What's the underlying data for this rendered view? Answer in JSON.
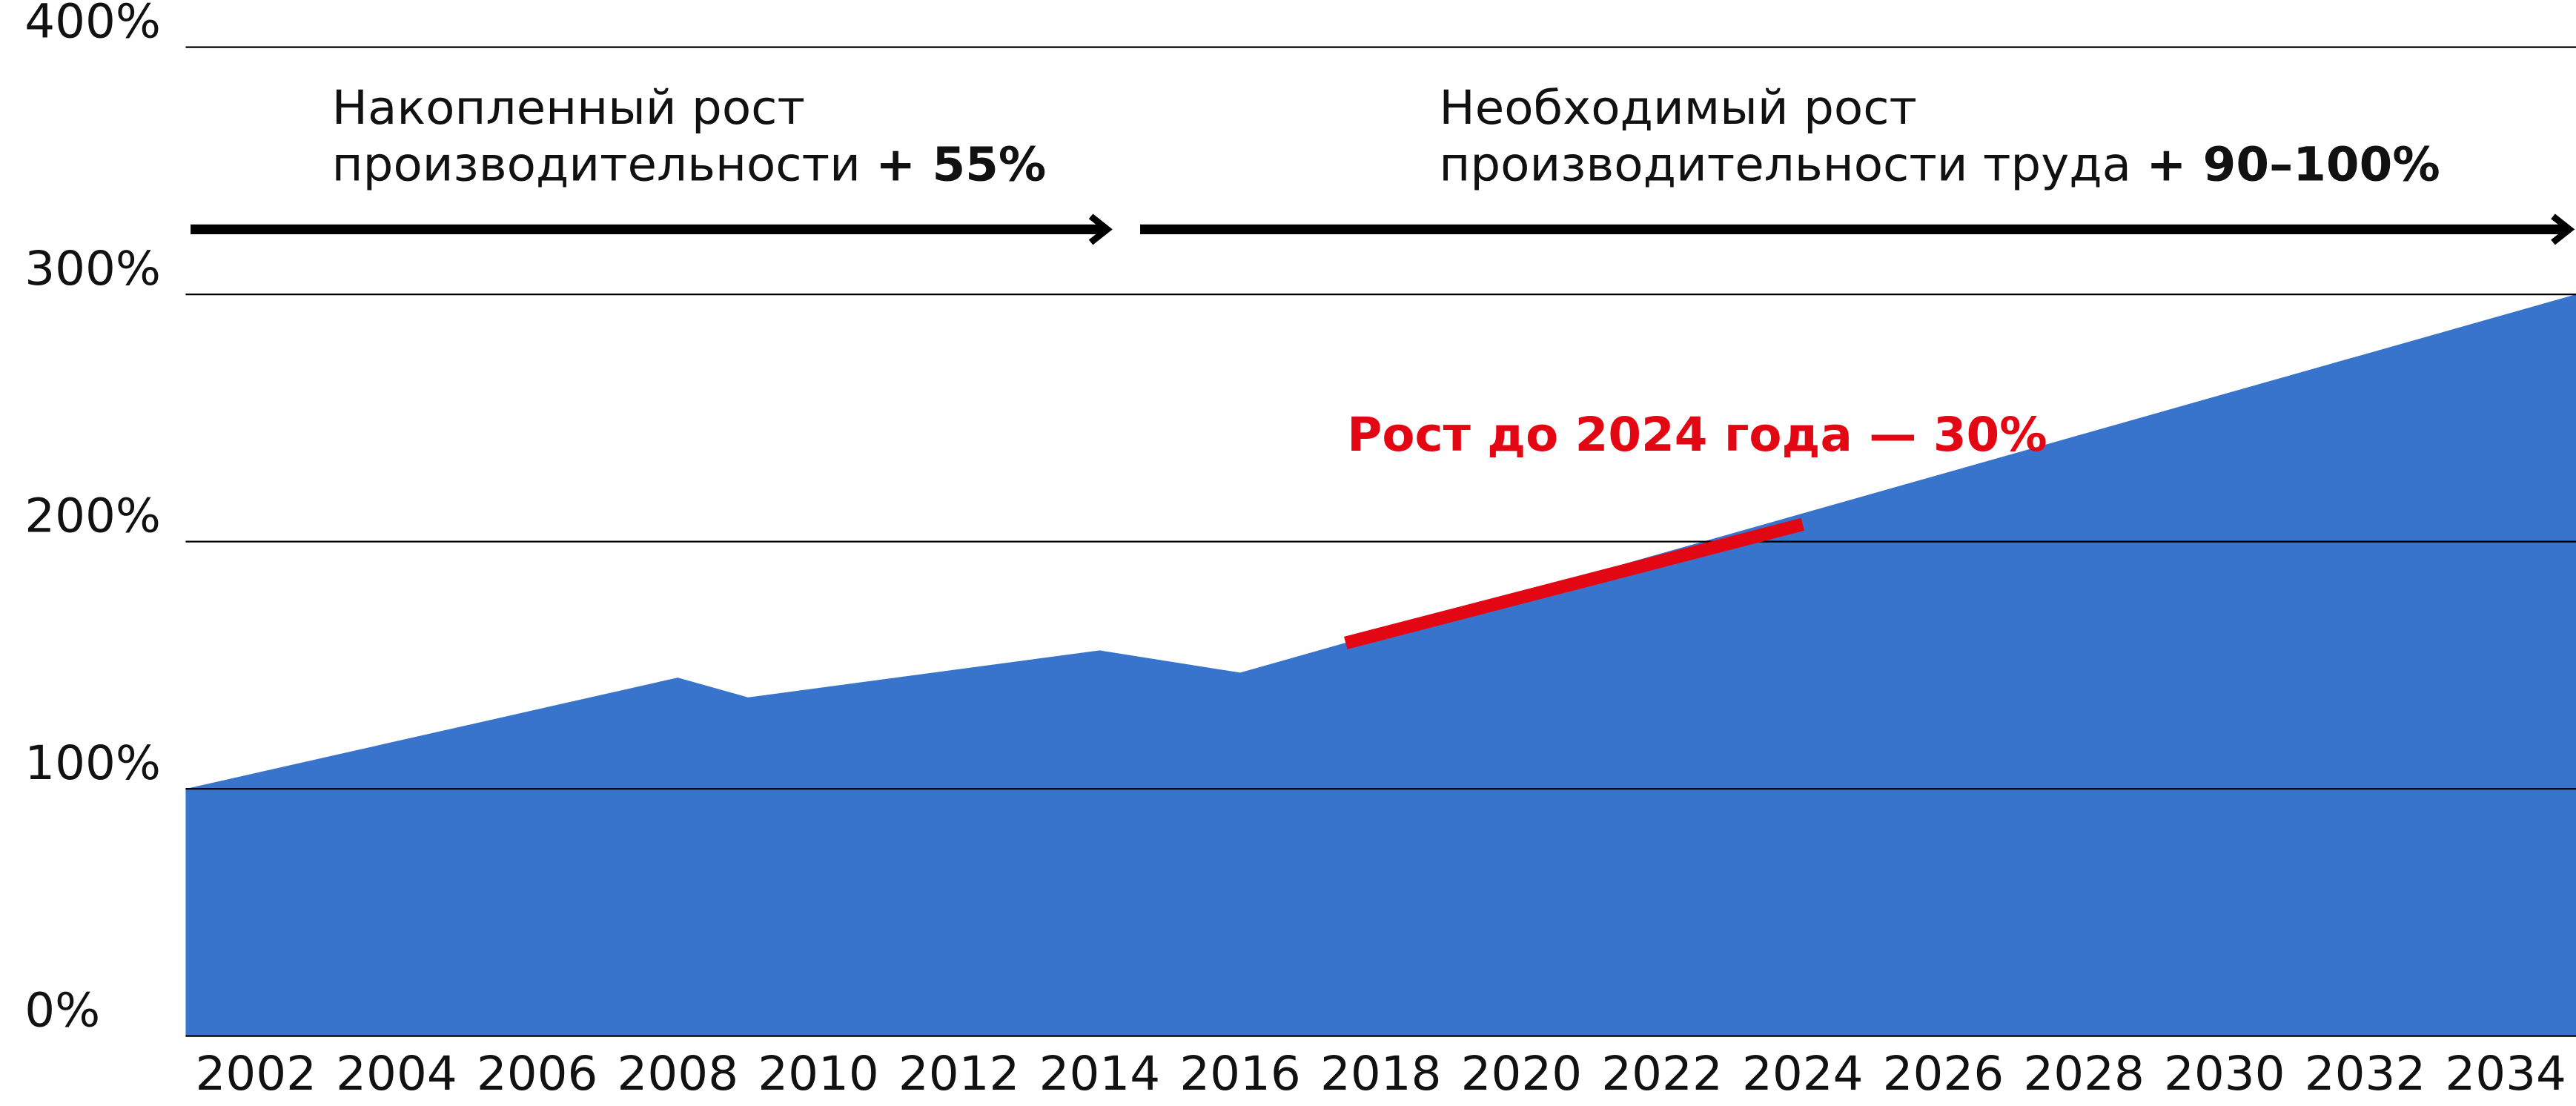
{
  "chart_data": {
    "type": "area",
    "x": [
      2001,
      2008,
      2009,
      2014,
      2016,
      2035
    ],
    "values": [
      100,
      145,
      137,
      156,
      147,
      300
    ],
    "color": "#3874cc",
    "xlim": [
      2001,
      2035
    ],
    "xticks": [
      2002,
      2004,
      2006,
      2008,
      2010,
      2012,
      2014,
      2016,
      2018,
      2020,
      2022,
      2024,
      2026,
      2028,
      2030,
      2032,
      2034
    ],
    "ylim": [
      0,
      400
    ],
    "yticks": [
      {
        "value": 0,
        "label": "0%"
      },
      {
        "value": 100,
        "label": "100%"
      },
      {
        "value": 200,
        "label": "200%"
      },
      {
        "value": 300,
        "label": "300%"
      },
      {
        "value": 400,
        "label": "400%"
      }
    ],
    "grid": true,
    "highlight": {
      "x": [
        2017.5,
        2024
      ],
      "values": [
        159,
        207
      ],
      "color": "#e30613",
      "label": "Рост до 2024 года — 30%"
    },
    "annotations": [
      {
        "lines": [
          "Накопленный рост",
          "производительности"
        ],
        "bold": "+ 55%"
      },
      {
        "lines": [
          "Необходимый рост",
          "производительности труда"
        ],
        "bold": "+ 90–100%"
      }
    ]
  }
}
